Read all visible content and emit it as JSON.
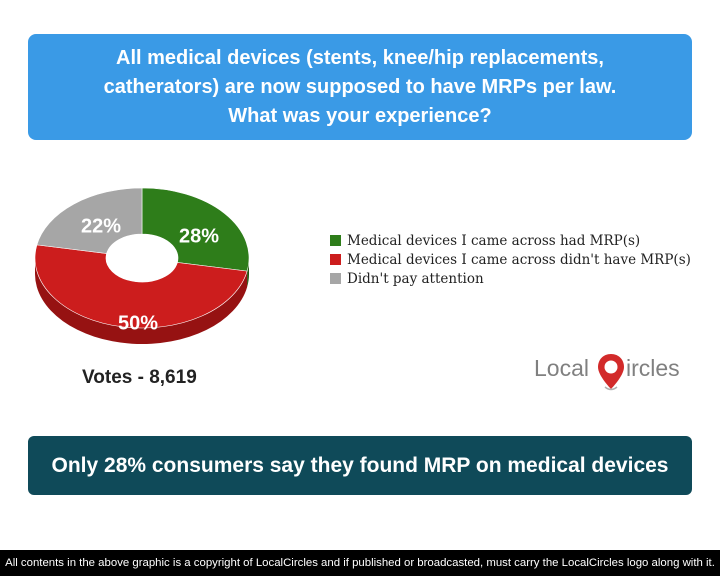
{
  "header": {
    "lines": [
      "All medical devices (stents, knee/hip replacements,",
      "catherators) are now supposed to have MRPs per law.",
      "What was your experience?"
    ]
  },
  "chart_data": {
    "type": "pie",
    "variant": "donut-3d",
    "slices": [
      {
        "label": "Medical devices I came across had MRP(s)",
        "value": 28,
        "display": "28%",
        "color": "#2e7d1a",
        "side_color": "#1f5a10"
      },
      {
        "label": "Medical devices I came across didn't have MRP(s)",
        "value": 50,
        "display": "50%",
        "color": "#cc1d1d",
        "side_color": "#961212"
      },
      {
        "label": "Didn't pay attention",
        "value": 22,
        "display": "22%",
        "color": "#a6a6a6",
        "side_color": "#7d7d7d"
      }
    ],
    "legend_position": "right"
  },
  "votes": "Votes - 8,619",
  "logo": {
    "part1": "Local",
    "part2": "C",
    "part3": "ircles",
    "gray": "#808080",
    "red": "#d22a2a"
  },
  "bottom_banner": "Only 28% consumers say they found MRP on medical devices",
  "footer": "All contents in the above graphic is a copyright of LocalCircles and if published or broadcasted, must carry the LocalCircles logo along with it."
}
